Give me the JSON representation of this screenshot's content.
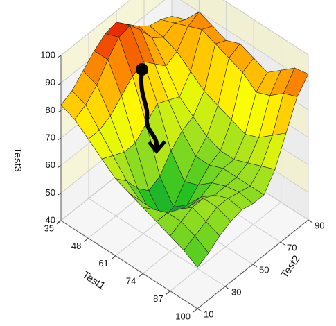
{
  "chart_data": {
    "type": "surface",
    "xlabel": "Test1",
    "ylabel": "Test2",
    "zlabel": "Test3",
    "xlim": [
      35,
      100
    ],
    "ylim": [
      10,
      90
    ],
    "zlim": [
      40,
      100
    ],
    "xticks": [
      35,
      48,
      61,
      74,
      87,
      100
    ],
    "yticks": [
      10,
      30,
      50,
      70,
      90
    ],
    "zticks": [
      40,
      50,
      60,
      70,
      80,
      90,
      100
    ],
    "grid": true,
    "colormap": [
      "#2020c0",
      "#20c020",
      "#a0e020",
      "#ffff00",
      "#ff9900",
      "#e00000"
    ],
    "x": [
      35,
      41.5,
      48,
      54.5,
      61,
      67.5,
      74,
      80.5,
      87,
      93.5,
      100
    ],
    "y": [
      10,
      18,
      26,
      34,
      42,
      50,
      58,
      66,
      74,
      82,
      90
    ],
    "z": [
      [
        82,
        84,
        88,
        92,
        95,
        96,
        92,
        88,
        85,
        84,
        82
      ],
      [
        80,
        82,
        86,
        92,
        97,
        98,
        93,
        87,
        84,
        86,
        84
      ],
      [
        76,
        76,
        78,
        82,
        86,
        88,
        84,
        80,
        82,
        88,
        90
      ],
      [
        72,
        70,
        68,
        68,
        72,
        76,
        74,
        72,
        78,
        90,
        88
      ],
      [
        68,
        64,
        58,
        54,
        56,
        62,
        66,
        68,
        74,
        88,
        86
      ],
      [
        66,
        60,
        52,
        47,
        48,
        54,
        60,
        64,
        72,
        86,
        88
      ],
      [
        64,
        60,
        54,
        50,
        52,
        56,
        60,
        62,
        70,
        84,
        86
      ],
      [
        62,
        62,
        60,
        58,
        58,
        60,
        62,
        62,
        68,
        80,
        84
      ],
      [
        60,
        62,
        64,
        64,
        62,
        62,
        62,
        64,
        70,
        82,
        88
      ],
      [
        58,
        60,
        62,
        64,
        64,
        63,
        62,
        66,
        74,
        86,
        92
      ],
      [
        55,
        57,
        60,
        62,
        63,
        62,
        62,
        68,
        78,
        88,
        93
      ]
    ]
  }
}
